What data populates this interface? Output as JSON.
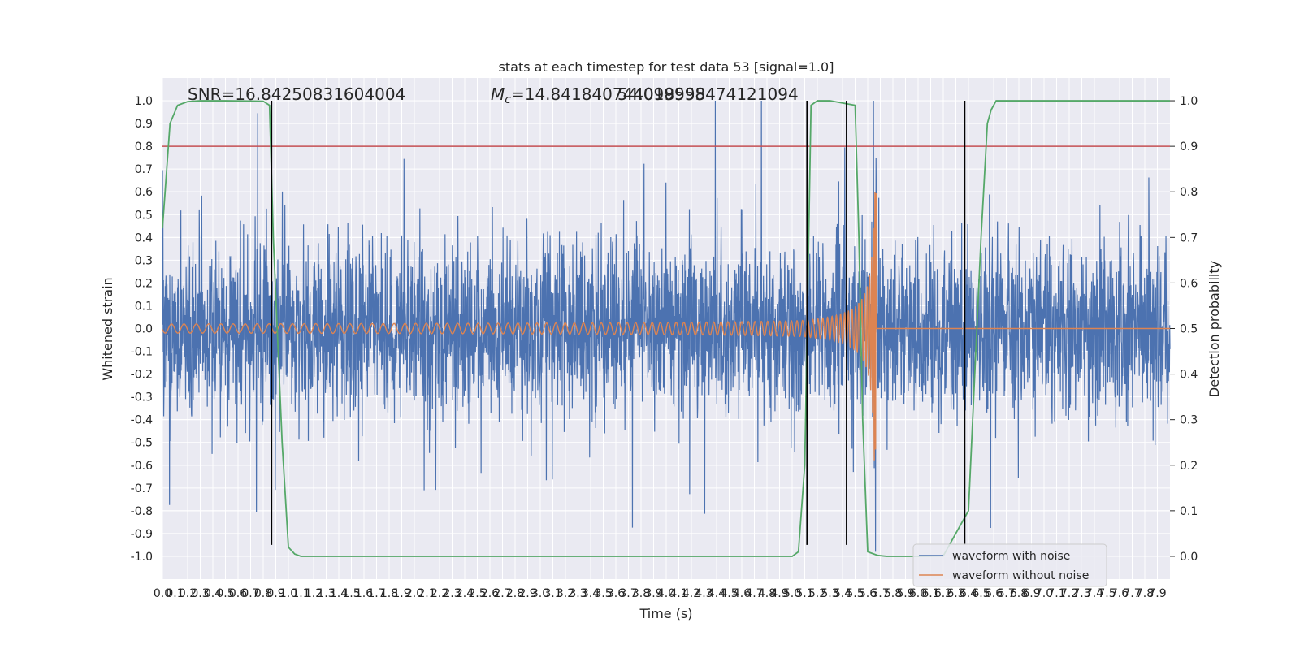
{
  "chart_data": {
    "type": "line",
    "title": "stats at each timestep for test data 53 [signal=1.0]",
    "xlabel": "Time (s)",
    "ylabel": "Whitened strain",
    "y2label": "Detection probability",
    "xlim": [
      0.0,
      8.0
    ],
    "ylim": [
      -1.1,
      1.1
    ],
    "y2lim": [
      -0.05,
      1.05
    ],
    "x_ticks": [
      "0.0",
      "0.1",
      "0.2",
      "0.3",
      "0.4",
      "0.5",
      "0.6",
      "0.7",
      "0.8",
      "0.9",
      "1.0",
      "1.1",
      "1.2",
      "1.3",
      "1.4",
      "1.5",
      "1.6",
      "1.7",
      "1.8",
      "1.9",
      "2.0",
      "2.1",
      "2.2",
      "2.3",
      "2.4",
      "2.5",
      "2.6",
      "2.7",
      "2.8",
      "2.9",
      "3.0",
      "3.1",
      "3.2",
      "3.3",
      "3.4",
      "3.5",
      "3.6",
      "3.7",
      "3.8",
      "3.9",
      "4.0",
      "4.1",
      "4.2",
      "4.3",
      "4.4",
      "4.5",
      "4.6",
      "4.7",
      "4.8",
      "4.9",
      "5.0",
      "5.1",
      "5.2",
      "5.3",
      "5.4",
      "5.5",
      "5.6",
      "5.7",
      "5.8",
      "5.9",
      "6.0",
      "6.1",
      "6.2",
      "6.3",
      "6.4",
      "6.5",
      "6.6",
      "6.7",
      "6.8",
      "6.9",
      "7.0",
      "7.1",
      "7.2",
      "7.3",
      "7.4",
      "7.5",
      "7.6",
      "7.7",
      "7.8",
      "7.9"
    ],
    "y_ticks": [
      "1.0",
      "0.9",
      "0.8",
      "0.7",
      "0.6",
      "0.5",
      "0.4",
      "0.3",
      "0.2",
      "0.1",
      "0.0",
      "-0.1",
      "-0.2",
      "-0.3",
      "-0.4",
      "-0.5",
      "-0.6",
      "-0.7",
      "-0.8",
      "-0.9",
      "-1.0"
    ],
    "y_tick_values": [
      1.0,
      0.9,
      0.8,
      0.7,
      0.6,
      0.5,
      0.4,
      0.3,
      0.2,
      0.1,
      0.0,
      -0.1,
      -0.2,
      -0.3,
      -0.4,
      -0.5,
      -0.6,
      -0.7,
      -0.8,
      -0.9,
      -1.0
    ],
    "y2_ticks": [
      "1.0",
      "0.9",
      "0.8",
      "0.7",
      "0.6",
      "0.5",
      "0.4",
      "0.3",
      "0.2",
      "0.1",
      "0.0"
    ],
    "y2_tick_values": [
      1.0,
      0.9,
      0.8,
      0.7,
      0.6,
      0.5,
      0.4,
      0.3,
      0.2,
      0.1,
      0.0
    ],
    "grid": true,
    "legend_position": "lower-right",
    "colors": {
      "noisy": "#4c72b0",
      "clean": "#dd8452",
      "probability": "#55a868",
      "threshold": "#c44e52",
      "markers": "#000000",
      "background": "#eaeaf2"
    },
    "series": [
      {
        "name": "waveform with noise",
        "description_values": {
          "noise_std": 0.18,
          "peak_range": [
            -0.95,
            1.0
          ]
        }
      },
      {
        "name": "waveform without noise",
        "amplitude_start": 0.02,
        "amplitude_peak": 0.6,
        "merger_time": 5.67,
        "frequency_start_hz": 10
      }
    ],
    "detection_probability": {
      "x": [
        0.0,
        0.06,
        0.12,
        0.2,
        0.3,
        0.5,
        0.8,
        0.85,
        0.88,
        0.95,
        1.0,
        1.05,
        1.1,
        2.0,
        3.0,
        4.0,
        5.0,
        5.05,
        5.1,
        5.15,
        5.2,
        5.3,
        5.5,
        5.53,
        5.56,
        5.6,
        5.68,
        5.75,
        5.8,
        6.0,
        6.2,
        6.4,
        6.5,
        6.55,
        6.58,
        6.62,
        6.65,
        6.7,
        7.0,
        8.0
      ],
      "y": [
        0.72,
        0.95,
        0.99,
        0.998,
        1.0,
        1.0,
        0.999,
        0.99,
        0.7,
        0.25,
        0.02,
        0.005,
        0.0,
        0.0,
        0.0,
        0.0,
        0.0,
        0.01,
        0.2,
        0.99,
        1.0,
        1.0,
        0.99,
        0.7,
        0.3,
        0.01,
        0.002,
        0.0,
        0.0,
        0.0,
        0.001,
        0.1,
        0.7,
        0.95,
        0.98,
        1.0,
        1.0,
        1.0,
        1.0,
        1.0
      ]
    },
    "threshold": {
      "y2": 0.9
    },
    "vertical_lines": [
      {
        "x": 0.866,
        "y_bottom": -0.95,
        "y_top": 1.0
      },
      {
        "x": 5.118,
        "y_bottom": -0.95,
        "y_top": 1.0
      },
      {
        "x": 5.432,
        "y_bottom": -0.95,
        "y_top": 1.0
      },
      {
        "x": 6.37,
        "y_bottom": -0.95,
        "y_top": 1.0
      }
    ],
    "annotations": {
      "snr": "SNR=16.84250831604004",
      "mc_prefix": "M",
      "mc_subscript": "c",
      "mc_value": "=14.841840744018555",
      "extra": "54.099998474121094"
    },
    "legend": [
      "waveform with noise",
      "waveform without noise"
    ]
  }
}
